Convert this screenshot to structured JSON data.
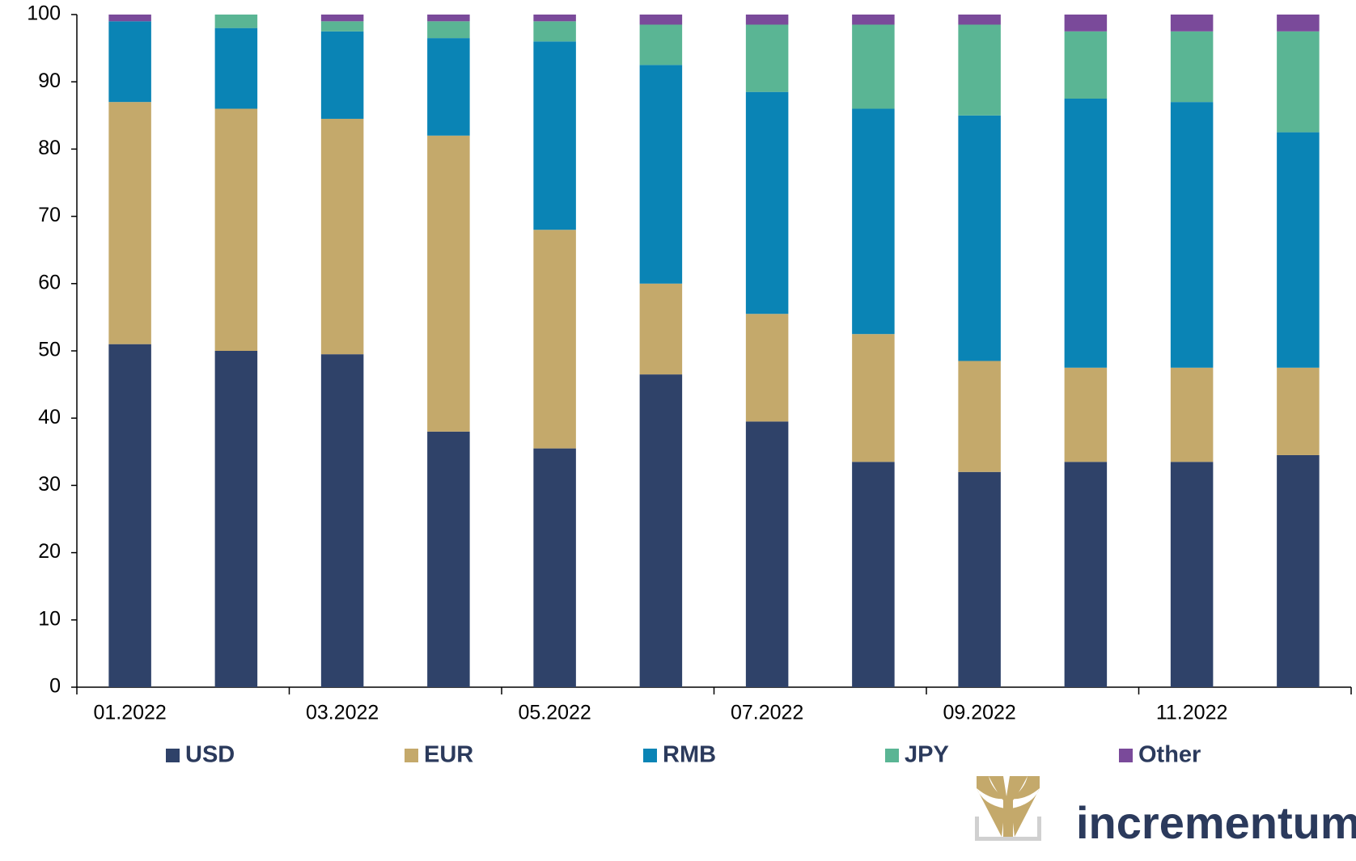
{
  "chart_data": {
    "type": "stacked_bar",
    "categories": [
      "01.2022",
      null,
      "03.2022",
      null,
      "05.2022",
      null,
      "07.2022",
      null,
      "09.2022",
      null,
      "11.2022",
      null
    ],
    "series": [
      {
        "name": "USD",
        "color": "#2f4269",
        "values": [
          51,
          50,
          49.5,
          38,
          35.5,
          46.5,
          39.5,
          33.5,
          32,
          33.5,
          33.5,
          34.5
        ]
      },
      {
        "name": "EUR",
        "color": "#c4a96b",
        "values": [
          36,
          36,
          35,
          44,
          32.5,
          13.5,
          16,
          19,
          16.5,
          14,
          14,
          13
        ]
      },
      {
        "name": "RMB",
        "color": "#0a84b5",
        "values": [
          12,
          12,
          13,
          14.5,
          28,
          32.5,
          33,
          33.5,
          36.5,
          40,
          39.5,
          35
        ]
      },
      {
        "name": "JPY",
        "color": "#5ab594",
        "values": [
          0,
          2,
          1.5,
          2.5,
          3,
          6,
          10,
          12.5,
          13.5,
          10,
          10.5,
          15
        ]
      },
      {
        "name": "Other",
        "color": "#7a4a9a",
        "values": [
          1,
          0,
          1,
          1,
          1,
          1.5,
          1.5,
          1.5,
          1.5,
          2.5,
          2.5,
          2.5
        ]
      }
    ],
    "ylim": [
      0,
      100
    ],
    "yticks": [
      0,
      10,
      20,
      30,
      40,
      50,
      60,
      70,
      80,
      90,
      100
    ],
    "grid": false
  },
  "branding": {
    "text": "incrementum"
  }
}
